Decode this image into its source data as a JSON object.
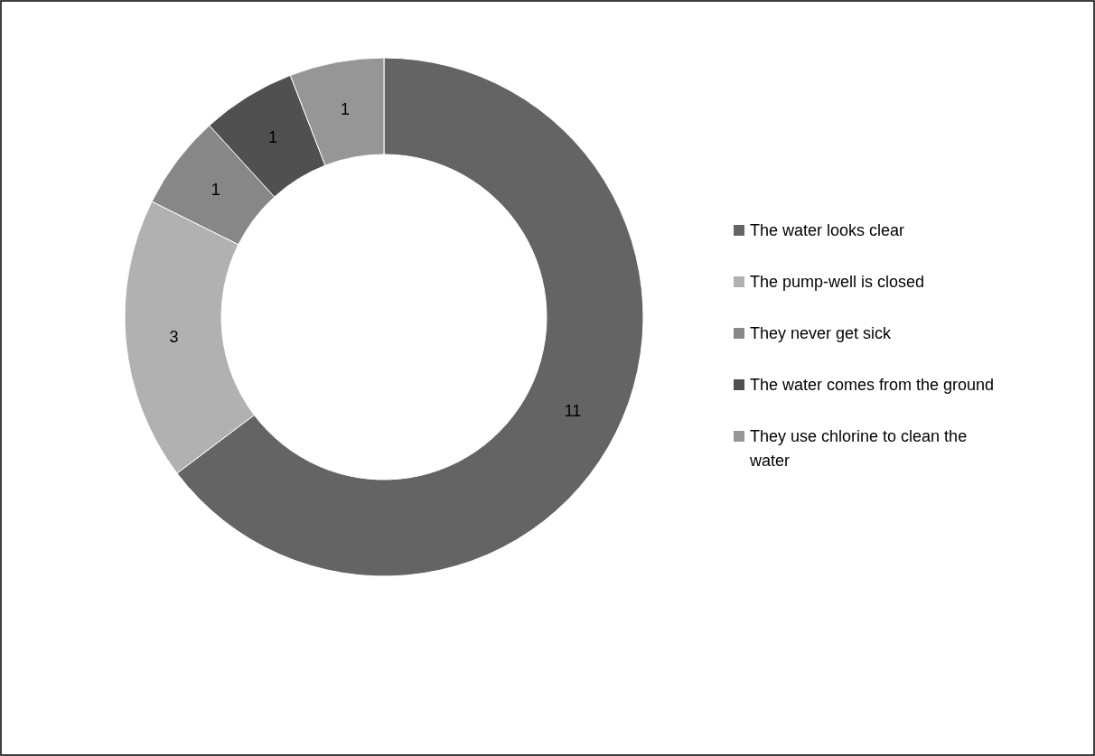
{
  "chart_data": {
    "type": "donut",
    "categories": [
      "The water looks clear",
      "The pump-well is closed",
      "They never get sick",
      "The water comes from the ground",
      "They use chlorine to clean the water"
    ],
    "values": [
      11,
      3,
      1,
      1,
      1
    ],
    "colors": [
      "#646464",
      "#b1b1b1",
      "#878787",
      "#505050",
      "#969696"
    ],
    "data_labels": true,
    "legend": "right"
  }
}
